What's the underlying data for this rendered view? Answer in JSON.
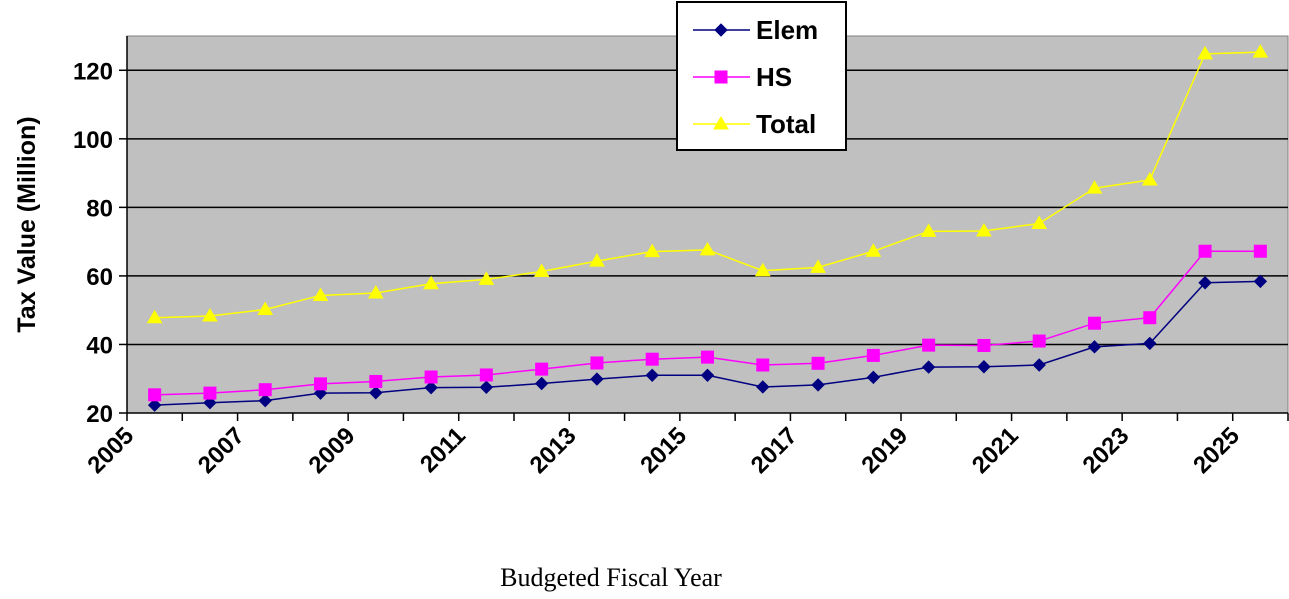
{
  "chart_data": {
    "type": "line",
    "title": "",
    "xlabel": "Budgeted Fiscal Year",
    "ylabel": "Tax Value (Million)",
    "ylim": [
      20,
      130
    ],
    "yticks": [
      20,
      40,
      60,
      80,
      100,
      120
    ],
    "xlim": [
      2005,
      2026
    ],
    "xticks": [
      2005,
      2007,
      2009,
      2011,
      2013,
      2015,
      2017,
      2019,
      2021,
      2023,
      2025
    ],
    "x": [
      2005.5,
      2006.5,
      2007.5,
      2008.5,
      2009.5,
      2010.5,
      2011.5,
      2012.5,
      2013.5,
      2014.5,
      2015.5,
      2016.5,
      2017.5,
      2018.5,
      2019.5,
      2020.5,
      2021.5,
      2022.5,
      2023.5,
      2024.5,
      2025.5
    ],
    "grid": true,
    "legend_position": "top-center",
    "series": [
      {
        "name": "Elem",
        "color": "#000080",
        "marker": "diamond",
        "values": [
          22.3,
          23.0,
          23.6,
          25.8,
          25.9,
          27.4,
          27.5,
          28.6,
          29.9,
          31.0,
          31.0,
          27.6,
          28.2,
          30.4,
          33.4,
          33.5,
          34.0,
          39.3,
          40.3,
          58.0,
          58.4
        ]
      },
      {
        "name": "HS",
        "color": "#FF00FF",
        "marker": "square",
        "values": [
          25.3,
          25.8,
          26.8,
          28.5,
          29.2,
          30.5,
          31.1,
          32.8,
          34.6,
          35.7,
          36.3,
          34.0,
          34.5,
          36.8,
          39.8,
          39.7,
          41.0,
          46.2,
          47.8,
          67.2,
          67.2
        ]
      },
      {
        "name": "Total",
        "color": "#FFFF00",
        "marker": "triangle",
        "values": [
          47.8,
          48.3,
          50.2,
          54.3,
          55.0,
          57.7,
          59.0,
          61.3,
          64.3,
          67.1,
          67.6,
          61.5,
          62.5,
          67.2,
          73.0,
          73.1,
          75.3,
          85.6,
          88.0,
          124.8,
          125.3
        ]
      }
    ]
  }
}
